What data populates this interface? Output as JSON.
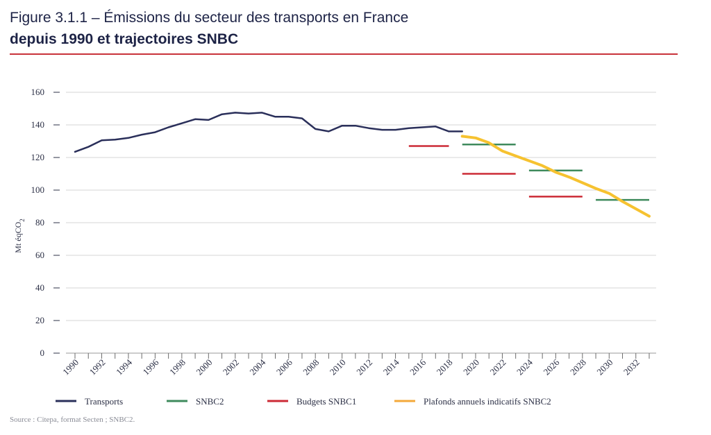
{
  "header": {
    "title_line1": "Figure 3.1.1 – Émissions du secteur des transports en France",
    "title_line2": "depuis 1990 et trajectoires SNBC"
  },
  "source": "Source : Citepa, format Secten ; SNBC2.",
  "colors": {
    "transports": "#2a2f5a",
    "snbc2": "#3e8a5c",
    "budgets_snbc1": "#cc2a35",
    "plafonds": "#f6c230",
    "plafonds_legend": "#f4a93a",
    "grid": "#d6d6d6",
    "accent_rule": "#c8323a"
  },
  "chart_data": {
    "type": "line",
    "ylabel": "Mt éqCO2",
    "ylim": [
      0,
      160
    ],
    "yticks": [
      0,
      20,
      40,
      60,
      80,
      100,
      120,
      140,
      160
    ],
    "xlim": [
      1990,
      2033
    ],
    "xticks": [
      "1990",
      "1992",
      "1994",
      "1996",
      "1998",
      "2000",
      "2002",
      "2004",
      "2006",
      "2008",
      "2010",
      "2012",
      "2014",
      "2016",
      "2018",
      "2020",
      "2022",
      "2024",
      "2026",
      "2028",
      "2030",
      "2032"
    ],
    "grid": true,
    "legend_position": "bottom",
    "series": [
      {
        "name": "Transports",
        "kind": "line",
        "color_key": "transports",
        "points": [
          [
            1990,
            123.5
          ],
          [
            1991,
            126.5
          ],
          [
            1992,
            130.5
          ],
          [
            1993,
            131
          ],
          [
            1994,
            132
          ],
          [
            1995,
            134
          ],
          [
            1996,
            135.5
          ],
          [
            1997,
            138.5
          ],
          [
            1998,
            141
          ],
          [
            1999,
            143.5
          ],
          [
            2000,
            143
          ],
          [
            2001,
            146.5
          ],
          [
            2002,
            147.5
          ],
          [
            2003,
            147
          ],
          [
            2004,
            147.5
          ],
          [
            2005,
            145
          ],
          [
            2006,
            145
          ],
          [
            2007,
            144
          ],
          [
            2008,
            137.5
          ],
          [
            2009,
            136
          ],
          [
            2010,
            139.5
          ],
          [
            2011,
            139.5
          ],
          [
            2012,
            138
          ],
          [
            2013,
            137
          ],
          [
            2014,
            137
          ],
          [
            2015,
            138
          ],
          [
            2016,
            138.5
          ],
          [
            2017,
            139
          ],
          [
            2018,
            136
          ],
          [
            2019,
            136
          ]
        ]
      },
      {
        "name": "SNBC2",
        "kind": "segments",
        "color_key": "snbc2",
        "segments": [
          {
            "x_start": 2019,
            "x_end": 2023,
            "value": 128
          },
          {
            "x_start": 2024,
            "x_end": 2028,
            "value": 112
          },
          {
            "x_start": 2029,
            "x_end": 2033,
            "value": 94
          }
        ]
      },
      {
        "name": "Budgets SNBC1",
        "kind": "segments",
        "color_key": "budgets_snbc1",
        "segments": [
          {
            "x_start": 2015,
            "x_end": 2018,
            "value": 127
          },
          {
            "x_start": 2019,
            "x_end": 2023,
            "value": 110
          },
          {
            "x_start": 2024,
            "x_end": 2028,
            "value": 96
          }
        ]
      },
      {
        "name": "Plafonds annuels indicatifs SNBC2",
        "kind": "line",
        "color_key": "plafonds",
        "points": [
          [
            2019,
            133
          ],
          [
            2020,
            132
          ],
          [
            2021,
            129
          ],
          [
            2022,
            124
          ],
          [
            2023,
            121
          ],
          [
            2024,
            118
          ],
          [
            2025,
            115
          ],
          [
            2026,
            111
          ],
          [
            2027,
            108
          ],
          [
            2028,
            104.5
          ],
          [
            2029,
            101
          ],
          [
            2030,
            98
          ],
          [
            2031,
            93
          ],
          [
            2032,
            88.5
          ],
          [
            2033,
            84
          ]
        ]
      }
    ]
  },
  "legend": {
    "items": [
      {
        "label": "Transports",
        "color_key": "transports"
      },
      {
        "label": "SNBC2",
        "color_key": "snbc2"
      },
      {
        "label": "Budgets SNBC1",
        "color_key": "budgets_snbc1"
      },
      {
        "label": "Plafonds annuels indicatifs SNBC2",
        "color_key": "plafonds_legend"
      }
    ]
  }
}
